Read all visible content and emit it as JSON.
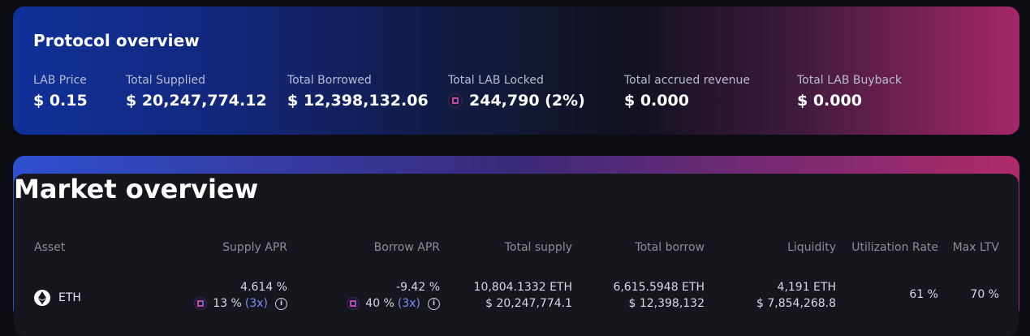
{
  "protocol": {
    "title": "Protocol overview",
    "stats": [
      {
        "label": "LAB Price",
        "value": "$ 0.15"
      },
      {
        "label": "Total Supplied",
        "value": "$ 20,247,774.12"
      },
      {
        "label": "Total Borrowed",
        "value": "$ 12,398,132.06"
      },
      {
        "label": "Total LAB Locked",
        "value": "244,790 (2%)",
        "icon": "lab-token-icon"
      },
      {
        "label": "Total accrued revenue",
        "value": "$ 0.000"
      },
      {
        "label": "Total LAB Buyback",
        "value": "$ 0.000"
      }
    ]
  },
  "market": {
    "title": "Market overview",
    "columns": [
      "Asset",
      "Supply APR",
      "Borrow APR",
      "Total supply",
      "Total borrow",
      "Liquidity",
      "Utilization Rate",
      "Max LTV"
    ],
    "rows": [
      {
        "asset": "ETH",
        "asset_icon": "eth-icon",
        "supply_apr": "4.614 %",
        "supply_boost": "13 %",
        "supply_mult": "(3x)",
        "borrow_apr": "-9.42 %",
        "borrow_boost": "40 %",
        "borrow_mult": "(3x)",
        "total_supply_token": "10,804.1332 ETH",
        "total_supply_usd": "$ 20,247,774.1",
        "total_borrow_token": "6,615.5948 ETH",
        "total_borrow_usd": "$ 12,398,132",
        "liquidity_token": "4,191 ETH",
        "liquidity_usd": "$ 7,854,268.8",
        "utilization": "61 %",
        "max_ltv": "70 %"
      }
    ]
  },
  "colors": {
    "background": "#0c0c13",
    "card": "#16161d",
    "accent_blue": "#10319a",
    "accent_pink": "#a3276a",
    "multiplier": "#7d8cff"
  }
}
